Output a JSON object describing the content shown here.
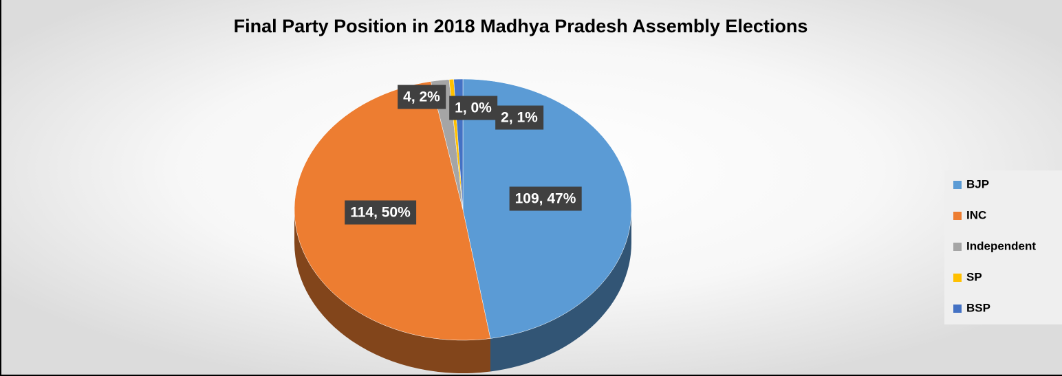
{
  "chart_data": {
    "type": "pie",
    "title": "Final Party Position in  2018 Madhya Pradesh Assembly Elections",
    "categories": [
      "BJP",
      "INC",
      "Independent",
      "SP",
      "BSP"
    ],
    "values": [
      109,
      114,
      4,
      1,
      2
    ],
    "value_labels": [
      "109, 47%",
      "114, 50%",
      "4, 2%",
      "1, 0%",
      "2, 1%"
    ],
    "colors": [
      "#5b9bd5",
      "#ed7d31",
      "#a5a5a5",
      "#ffc000",
      "#4472c4"
    ],
    "legend": "right"
  }
}
